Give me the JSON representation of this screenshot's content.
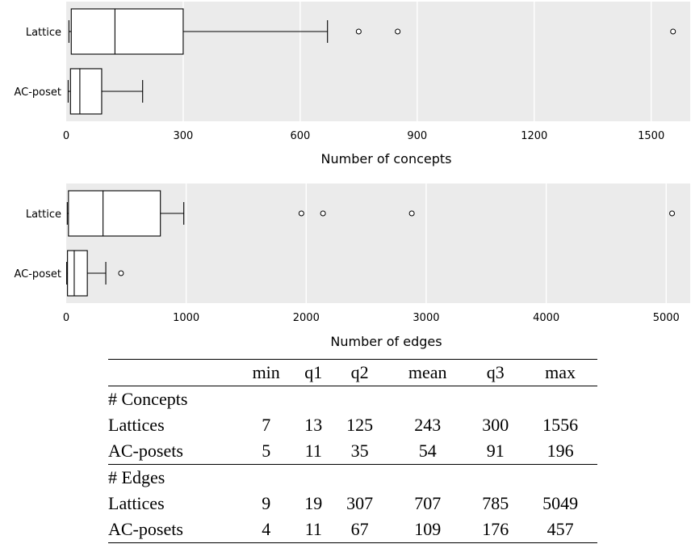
{
  "chart_data": [
    {
      "type": "boxplot",
      "xlabel": "Number of concepts",
      "xlim": [
        0,
        1600
      ],
      "xticks": [
        0,
        300,
        600,
        900,
        1200,
        1500
      ],
      "grid": true,
      "categories": [
        "Lattice",
        "AC-poset"
      ],
      "boxes": [
        {
          "name": "Lattice",
          "whisker_low": 7,
          "q1": 13,
          "median": 125,
          "q3": 300,
          "whisker_high": 670,
          "outliers": [
            750,
            850,
            1556
          ]
        },
        {
          "name": "AC-poset",
          "whisker_low": 5,
          "q1": 11,
          "median": 35,
          "q3": 91,
          "whisker_high": 196,
          "outliers": []
        }
      ]
    },
    {
      "type": "boxplot",
      "xlabel": "Number of edges",
      "xlim": [
        0,
        5200
      ],
      "xticks": [
        0,
        1000,
        2000,
        3000,
        4000,
        5000
      ],
      "grid": true,
      "categories": [
        "Lattice",
        "AC-poset"
      ],
      "boxes": [
        {
          "name": "Lattice",
          "whisker_low": 9,
          "q1": 19,
          "median": 307,
          "q3": 785,
          "whisker_high": 980,
          "outliers": [
            1960,
            2140,
            2880,
            5049
          ]
        },
        {
          "name": "AC-poset",
          "whisker_low": 4,
          "q1": 11,
          "median": 67,
          "q3": 176,
          "whisker_high": 330,
          "outliers": [
            457
          ]
        }
      ]
    }
  ],
  "table": {
    "columns": [
      "min",
      "q1",
      "q2",
      "mean",
      "q3",
      "max"
    ],
    "groups": [
      {
        "label": "# Concepts",
        "rows": [
          {
            "label": "Lattices",
            "values": [
              "7",
              "13",
              "125",
              "243",
              "300",
              "1556"
            ]
          },
          {
            "label": "AC-posets",
            "values": [
              "5",
              "11",
              "35",
              "54",
              "91",
              "196"
            ]
          }
        ]
      },
      {
        "label": "# Edges",
        "rows": [
          {
            "label": "Lattices",
            "values": [
              "9",
              "19",
              "307",
              "707",
              "785",
              "5049"
            ]
          },
          {
            "label": "AC-posets",
            "values": [
              "4",
              "11",
              "67",
              "109",
              "176",
              "457"
            ]
          }
        ]
      }
    ]
  }
}
